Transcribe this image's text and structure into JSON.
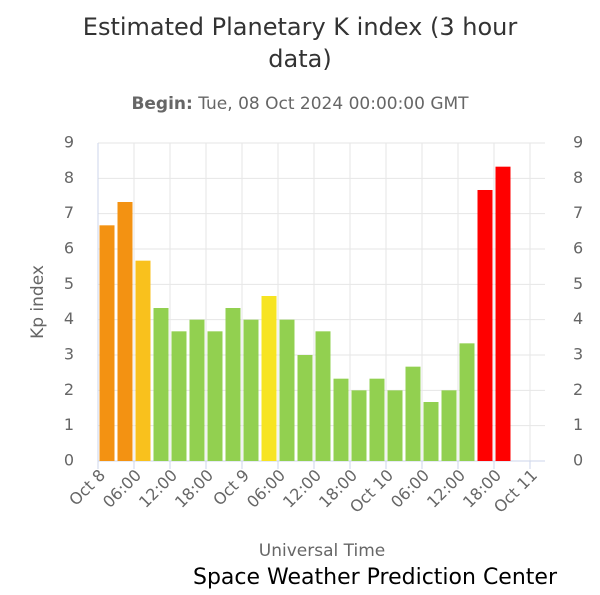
{
  "chart_data": {
    "type": "bar",
    "title_lines": [
      "Estimated Planetary K index (3 hour",
      "data)"
    ],
    "subtitle_label": "Begin:",
    "subtitle": "Tue, 08 Oct 2024 00:00:00 GMT",
    "y_label": "Kp index",
    "x_label": "Universal Time",
    "credit": "Space Weather Prediction Center",
    "x": [
      0,
      3,
      6,
      9,
      12,
      15,
      18,
      21,
      24,
      27,
      30,
      33,
      36,
      39,
      42,
      45,
      48,
      51,
      54,
      57,
      60,
      63,
      66
    ],
    "bar_width": 3,
    "values": [
      6.67,
      7.33,
      5.67,
      4.33,
      3.67,
      4.0,
      3.67,
      4.33,
      4.0,
      4.67,
      4.0,
      3.0,
      3.67,
      2.33,
      2.0,
      2.33,
      2.0,
      2.67,
      1.67,
      2.0,
      3.33,
      7.67,
      8.33
    ],
    "colors": [
      "#f39212",
      "#f39212",
      "#f9c11d",
      "#92d050",
      "#92d050",
      "#92d050",
      "#92d050",
      "#92d050",
      "#92d050",
      "#f7e422",
      "#92d050",
      "#92d050",
      "#92d050",
      "#92d050",
      "#92d050",
      "#92d050",
      "#92d050",
      "#92d050",
      "#92d050",
      "#92d050",
      "#92d050",
      "#ff0000",
      "#ff0000"
    ],
    "xlim": [
      0,
      74.5
    ],
    "xticks": [
      {
        "value": 0,
        "label": "Oct 8"
      },
      {
        "value": 6,
        "label": "06:00"
      },
      {
        "value": 12,
        "label": "12:00"
      },
      {
        "value": 18,
        "label": "18:00"
      },
      {
        "value": 24,
        "label": "Oct 9"
      },
      {
        "value": 30,
        "label": "06:00"
      },
      {
        "value": 36,
        "label": "12:00"
      },
      {
        "value": 42,
        "label": "18:00"
      },
      {
        "value": 48,
        "label": "Oct 10"
      },
      {
        "value": 54,
        "label": "06:00"
      },
      {
        "value": 60,
        "label": "12:00"
      },
      {
        "value": 66,
        "label": "18:00"
      },
      {
        "value": 72,
        "label": "Oct 11"
      }
    ],
    "ylim": [
      0,
      9
    ],
    "yticks": [
      0,
      1,
      2,
      3,
      4,
      5,
      6,
      7,
      8,
      9
    ],
    "grid": true
  }
}
